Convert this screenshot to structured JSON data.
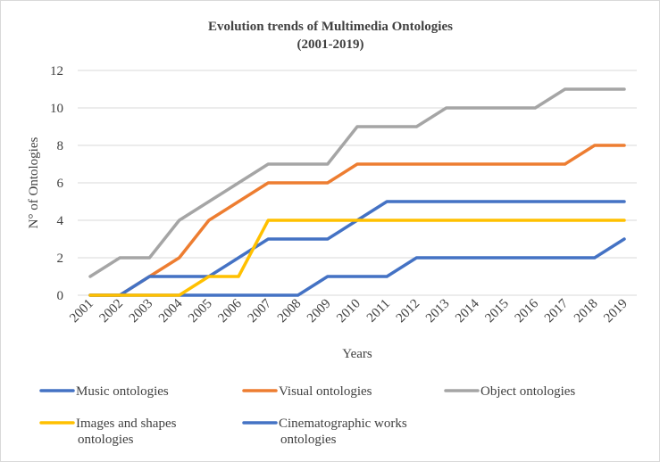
{
  "chart_data": {
    "type": "line",
    "title": [
      "Evolution trends of Multimedia Ontologies",
      "(2001-2019)"
    ],
    "xlabel": "Years",
    "ylabel": "N° of Ontologies",
    "ylim": [
      0,
      12
    ],
    "yticks": [
      "0",
      "2",
      "4",
      "6",
      "8",
      "10",
      "12"
    ],
    "grid": "horizontal",
    "legend_position": "bottom",
    "categories": [
      "2001",
      "2002",
      "2003",
      "2004",
      "2005",
      "2006",
      "2007",
      "2008",
      "2009",
      "2010",
      "2011",
      "2012",
      "2013",
      "2014",
      "2015",
      "2016",
      "2017",
      "2018",
      "2019"
    ],
    "series": [
      {
        "name": [
          "Music ontologies"
        ],
        "color": "#4472C4",
        "values": [
          0,
          0,
          1,
          1,
          1,
          2,
          3,
          3,
          3,
          4,
          5,
          5,
          5,
          5,
          5,
          5,
          5,
          5,
          5
        ]
      },
      {
        "name": [
          "Visual ontologies"
        ],
        "color": "#ED7D31",
        "values": [
          0,
          0,
          1,
          2,
          4,
          5,
          6,
          6,
          6,
          7,
          7,
          7,
          7,
          7,
          7,
          7,
          7,
          8,
          8
        ]
      },
      {
        "name": [
          "Object ontologies"
        ],
        "color": "#A5A5A5",
        "values": [
          1,
          2,
          2,
          4,
          5,
          6,
          7,
          7,
          7,
          9,
          9,
          9,
          10,
          10,
          10,
          10,
          11,
          11,
          11
        ]
      },
      {
        "name": [
          "Images and shapes",
          "ontologies"
        ],
        "color": "#FFC000",
        "values": [
          0,
          0,
          0,
          0,
          1,
          1,
          4,
          4,
          4,
          4,
          4,
          4,
          4,
          4,
          4,
          4,
          4,
          4,
          4
        ]
      },
      {
        "name": [
          "Cinematographic works",
          "ontologies"
        ],
        "color": "#4472C4",
        "values": [
          0,
          0,
          0,
          0,
          0,
          0,
          0,
          0,
          1,
          1,
          1,
          2,
          2,
          2,
          2,
          2,
          2,
          2,
          3
        ]
      }
    ]
  }
}
